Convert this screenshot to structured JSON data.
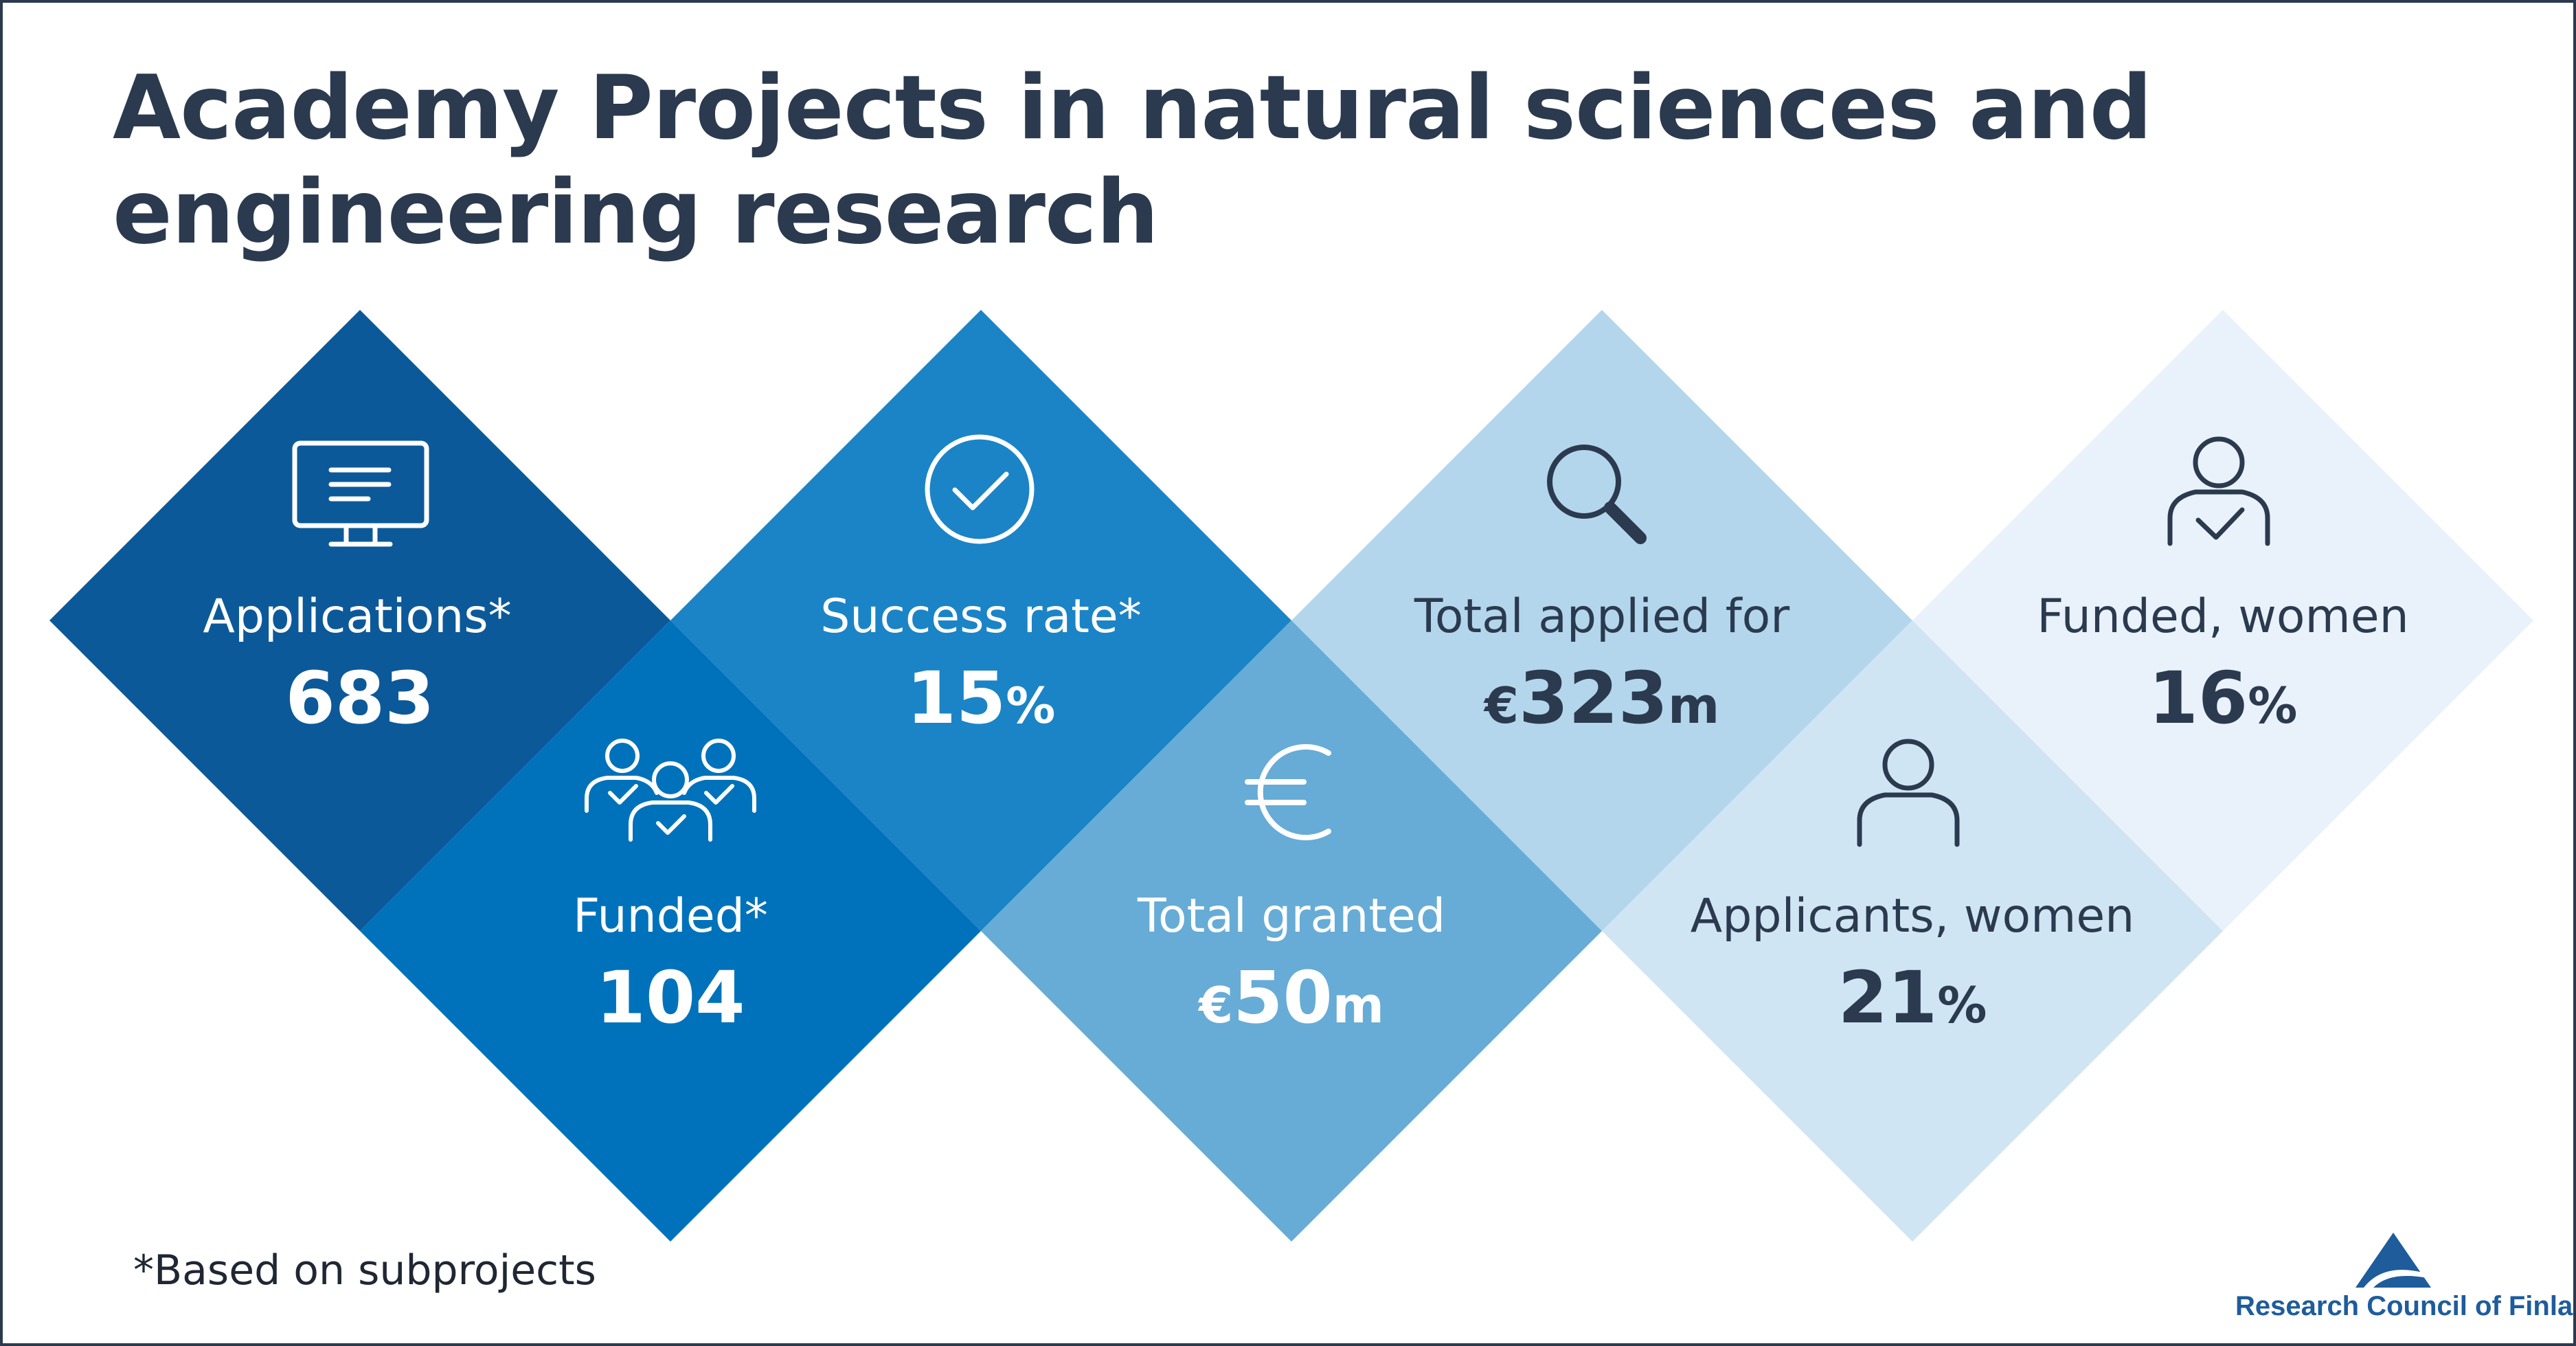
{
  "title": {
    "line1": "Academy Projects in natural sciences and",
    "line2": "engineering research"
  },
  "colors": {
    "title": "#2b3a4e",
    "applications": "#0c599a",
    "success_rate": "#1b84c6",
    "total_applied": "#b3d6ec",
    "funded_women": "#e9f2fa",
    "funded": "#0072bb",
    "total_granted": "#66acd6",
    "applicants_women": "#cfe5f3",
    "overlap_1": "#095392",
    "overlap_2": "#157cbf",
    "overlap_3": "#5fa6d3",
    "overlap_4": "#afd3ea",
    "logo": "#1e5c9c"
  },
  "stats": {
    "applications": {
      "label": "Applications*",
      "value": "683",
      "icon": "monitor-icon"
    },
    "success_rate": {
      "label": "Success rate*",
      "value": "15",
      "unit": "%",
      "icon": "check-circle-icon"
    },
    "total_applied": {
      "label": "Total applied for",
      "prefix": "€",
      "value": "323",
      "unit": "m",
      "icon": "magnifier-icon"
    },
    "funded_women": {
      "label": "Funded, women",
      "value": "16",
      "unit": "%",
      "icon": "person-check-icon"
    },
    "funded": {
      "label": "Funded*",
      "value": "104",
      "icon": "group-check-icon"
    },
    "total_granted": {
      "label": "Total granted",
      "prefix": "€",
      "value": "50",
      "unit": "m",
      "icon": "euro-icon"
    },
    "applicants_women": {
      "label": "Applicants, women",
      "value": "21",
      "unit": "%",
      "icon": "person-icon"
    }
  },
  "footnote": "*Based on subprojects",
  "logo": {
    "text": "Research Council of Finland"
  }
}
